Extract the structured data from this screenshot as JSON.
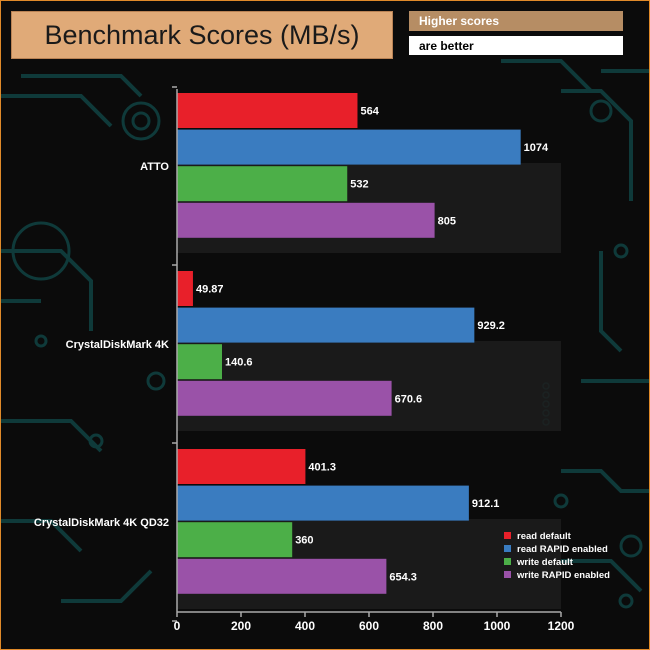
{
  "header": {
    "title": "Benchmark Scores (MB/s)",
    "note_line1": "Higher scores",
    "note_line2": "are better"
  },
  "chart_data": {
    "type": "bar",
    "orientation": "horizontal",
    "title": "Benchmark Scores (MB/s)",
    "categories": [
      "ATTO",
      "CrystalDiskMark 4K",
      "CrystalDiskMark 4K QD32"
    ],
    "series": [
      {
        "name": "read default",
        "color": "#e8202a",
        "values": [
          564,
          49.87,
          401.3
        ],
        "labels": [
          "564",
          "49.87",
          "401.3"
        ]
      },
      {
        "name": "read RAPID enabled",
        "color": "#3a7cc0",
        "values": [
          1074,
          929.2,
          912.1
        ],
        "labels": [
          "1074",
          "929.2",
          "912.1"
        ]
      },
      {
        "name": "write default",
        "color": "#4caf48",
        "values": [
          532,
          140.6,
          360
        ],
        "labels": [
          "532",
          "140.6",
          "360"
        ]
      },
      {
        "name": "write RAPID enabled",
        "color": "#9a52a8",
        "values": [
          805,
          670.6,
          654.3
        ],
        "labels": [
          "805",
          "670.6",
          "654.3"
        ]
      }
    ],
    "xlim": [
      0,
      1200
    ],
    "xticks": [
      "0",
      "200",
      "400",
      "600",
      "800",
      "1000",
      "1200"
    ],
    "legend_position": "bottom-right",
    "grid": false
  }
}
